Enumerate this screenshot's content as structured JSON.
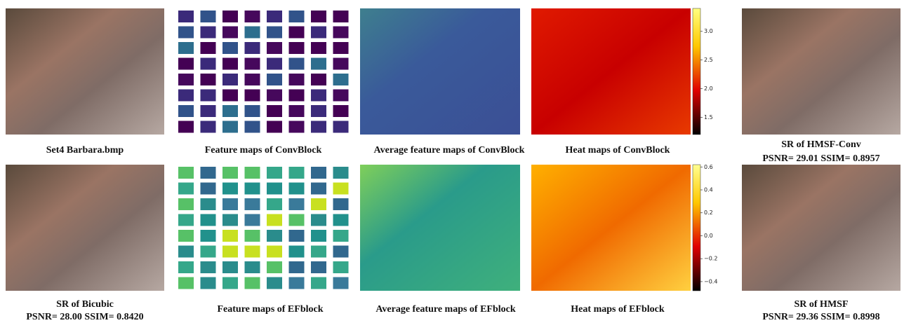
{
  "rows": [
    {
      "panels": [
        {
          "caption": "Set4 Barbara.bmp"
        },
        {
          "caption": "Feature maps of ConvBlock"
        },
        {
          "caption": "Average feature maps of ConvBlock"
        },
        {
          "caption": "Heat maps of ConvBlock",
          "colorbar": {
            "range": [
              1.2,
              3.4
            ],
            "ticks": [
              1.5,
              {
                "value": 2,
                "label": "2.0"
              },
              2.5,
              {
                "value": 3,
                "label": "3.0"
              }
            ]
          }
        },
        {
          "caption": "SR of HMSF-Conv",
          "metrics": "PSNR= 29.01 SSIM= 0.8957"
        }
      ]
    },
    {
      "panels": [
        {
          "caption": "SR of Bicubic",
          "metrics": "PSNR= 28.00 SSIM= 0.8420"
        },
        {
          "caption": "Feature maps of EFblock"
        },
        {
          "caption": "Average feature maps of EFblock"
        },
        {
          "caption": "Heat maps of EFblock",
          "colorbar": {
            "range": [
              -0.48,
              0.62
            ],
            "ticks": [
              {
                "value": -0.4,
                "label": "−0.4"
              },
              {
                "value": -0.2,
                "label": "−0.2"
              },
              {
                "value": 0,
                "label": "0.0"
              },
              0.2,
              0.4,
              0.6
            ]
          }
        },
        {
          "caption": "SR of HMSF",
          "metrics": "PSNR= 29.36 SSIM= 0.8998",
          "metrics_color": "#e32b2b"
        }
      ]
    }
  ]
}
